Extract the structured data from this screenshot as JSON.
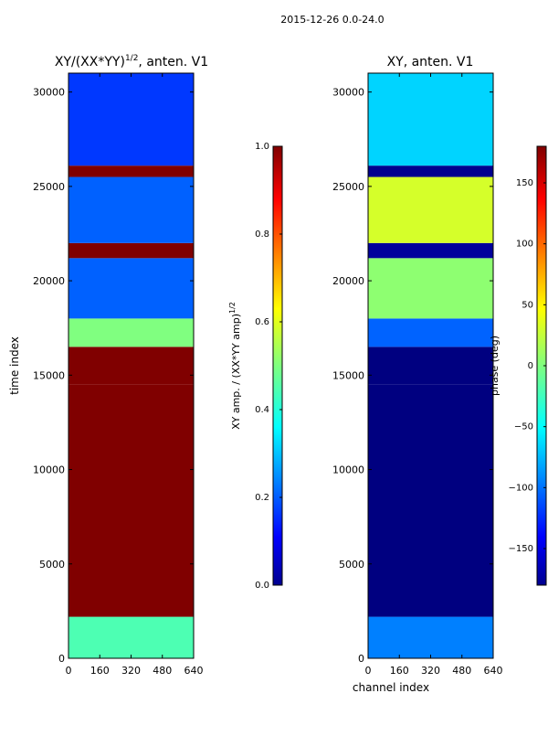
{
  "figure": {
    "suptitle": "2015-12-26 0.0-24.0"
  },
  "colors": {
    "axis": "#000000",
    "background": "#ffffff",
    "jet_low": "#00008f",
    "jet_high": "#800000"
  },
  "chart_data": [
    {
      "type": "heatmap",
      "title_main": "XY/(XX*YY)",
      "title_exponent": "1/2",
      "title_suffix": ", anten. V1",
      "xlabel": "",
      "ylabel": "time index",
      "xlim": [
        0,
        640
      ],
      "ylim": [
        0,
        31000
      ],
      "xticks": [
        0,
        160,
        320,
        480,
        640
      ],
      "yticks": [
        0,
        5000,
        10000,
        15000,
        20000,
        25000,
        30000
      ],
      "band_edges": [
        0,
        2200,
        14500,
        16500,
        18000,
        21200,
        22000,
        25500,
        26100,
        31000
      ],
      "band_values": [
        0.45,
        1.0,
        1.0,
        0.5,
        0.22,
        1.0,
        0.22,
        1.0,
        0.18
      ],
      "colorbar": {
        "label_main": "XY amp. / (XX*YY amp)",
        "label_exponent": "1/2",
        "range": [
          0.0,
          1.0
        ],
        "ticks": [
          "0.0",
          "0.2",
          "0.4",
          "0.6",
          "0.8",
          "1.0"
        ]
      }
    },
    {
      "type": "heatmap",
      "title_main": "XY, anten. V1",
      "title_exponent": "",
      "title_suffix": "",
      "xlabel": "channel index",
      "ylabel": "",
      "xlim": [
        0,
        640
      ],
      "ylim": [
        0,
        31000
      ],
      "xticks": [
        0,
        160,
        320,
        480,
        640
      ],
      "yticks": [
        0,
        5000,
        10000,
        15000,
        20000,
        25000,
        30000
      ],
      "band_edges": [
        0,
        2200,
        14500,
        16500,
        18000,
        21200,
        22000,
        25500,
        26100,
        31000
      ],
      "band_values": [
        -90,
        -180,
        -180,
        -100,
        5,
        -170,
        30,
        -175,
        -60
      ],
      "colorbar": {
        "label_main": "phase (deg)",
        "label_exponent": "",
        "range": [
          -180,
          180
        ],
        "ticks": [
          "-150",
          "-100",
          "-50",
          "0",
          "50",
          "100",
          "150"
        ]
      }
    }
  ]
}
